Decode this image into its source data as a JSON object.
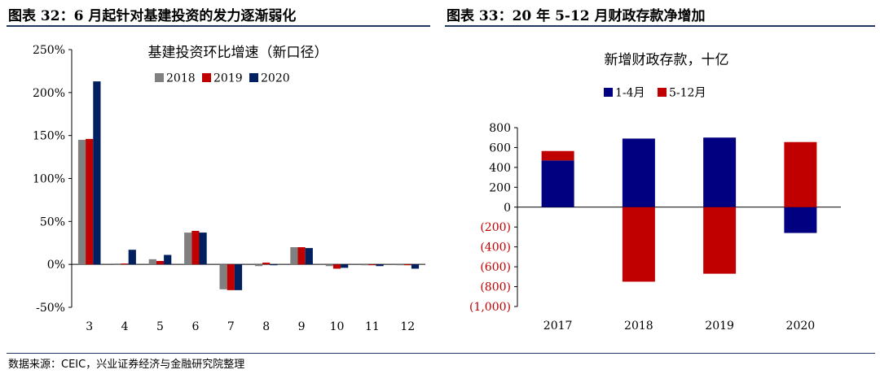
{
  "header": {
    "left_title": "图表 32：6 月起针对基建投资的发力逐渐弱化",
    "right_title": "图表 33：20 年 5-12 月财政存款净增加"
  },
  "footer": {
    "source": "数据来源：CEIC，兴业证券经济与金融研究院整理"
  },
  "chart_data": [
    {
      "type": "bar",
      "title": "基建投资环比增速（新口径）",
      "xlabel": "",
      "ylabel": "",
      "categories": [
        "3",
        "4",
        "5",
        "6",
        "7",
        "8",
        "9",
        "10",
        "11",
        "12"
      ],
      "series": [
        {
          "name": "2018",
          "color": "#808080",
          "values": [
            145,
            1,
            6,
            37,
            -29,
            -2,
            20,
            -2,
            -1,
            -1
          ]
        },
        {
          "name": "2019",
          "color": "#c00000",
          "values": [
            146,
            1,
            4,
            39,
            -30,
            2,
            20,
            -5,
            -1,
            -1
          ]
        },
        {
          "name": "2020",
          "color": "#002060",
          "values": [
            213,
            17,
            11,
            37,
            -30,
            -1,
            19,
            -4,
            -2,
            -5
          ]
        }
      ],
      "yticks": [
        "-50%",
        "0%",
        "50%",
        "100%",
        "150%",
        "200%",
        "250%"
      ],
      "ylim": [
        -50,
        250
      ],
      "grid": false,
      "legend_position": "top"
    },
    {
      "type": "bar",
      "stacked": true,
      "title": "新增财政存款，十亿",
      "xlabel": "",
      "ylabel": "",
      "categories": [
        "2017",
        "2018",
        "2019",
        "2020"
      ],
      "series": [
        {
          "name": "1-4月",
          "color": "#000080",
          "values": [
            470,
            690,
            700,
            -260
          ]
        },
        {
          "name": "5-12月",
          "color": "#c00000",
          "values": [
            95,
            -750,
            -670,
            655
          ]
        }
      ],
      "yticks": [
        "(1,000)",
        "(800)",
        "(600)",
        "(400)",
        "(200)",
        "0",
        "200",
        "400",
        "600",
        "800"
      ],
      "ylim": [
        -1000,
        800
      ],
      "grid": false,
      "legend_position": "top"
    }
  ]
}
